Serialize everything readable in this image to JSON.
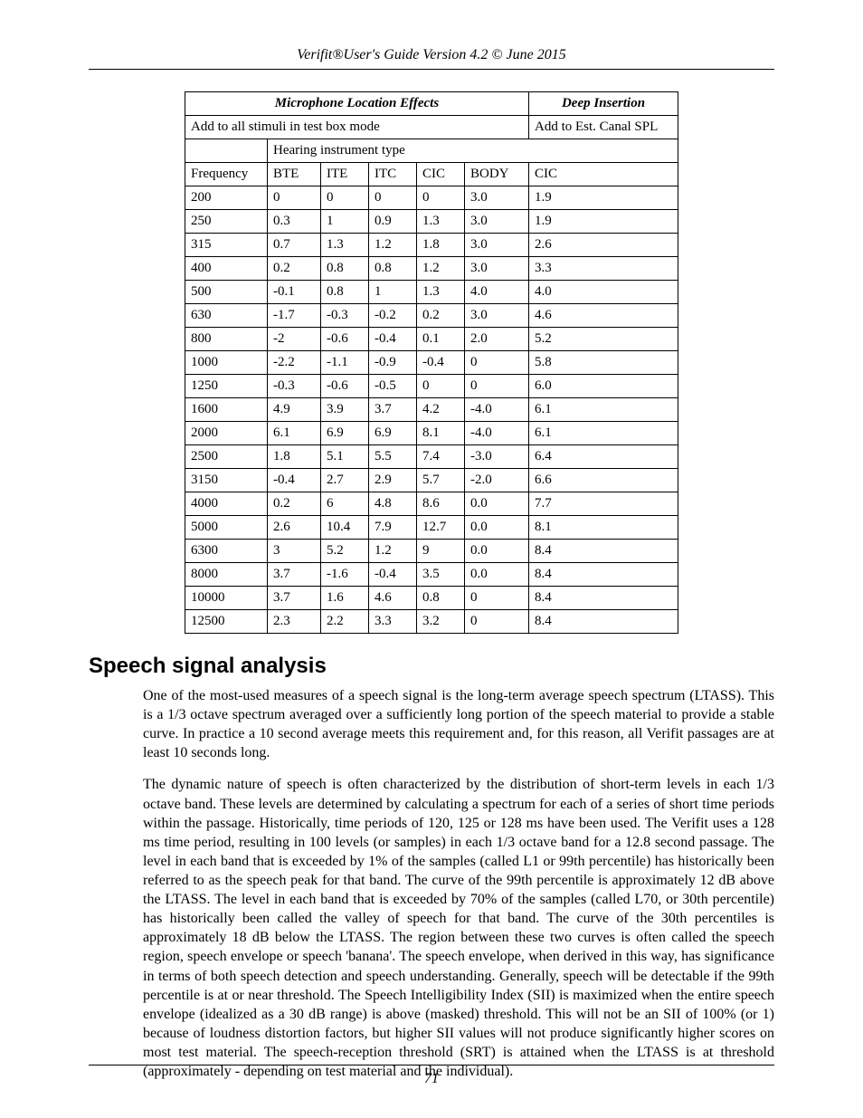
{
  "header": "Verifit®User's Guide Version 4.2 © June 2015",
  "pageNumber": "71",
  "table": {
    "mleHeader": "Microphone Location Effects",
    "deepHeader": "Deep Insertion",
    "mleSub": "Add to all stimuli in test box mode",
    "deepSub": "Add to Est. Canal SPL",
    "hearingType": "Hearing instrument type",
    "cols": {
      "freq": "Frequency",
      "bte": "BTE",
      "ite": "ITE",
      "itc": "ITC",
      "cic": "CIC",
      "body": "BODY",
      "cic2": "CIC"
    },
    "rows": [
      {
        "f": "200",
        "bte": "0",
        "ite": "0",
        "itc": "0",
        "cic": "0",
        "body": "3.0",
        "deep": "1.9"
      },
      {
        "f": "250",
        "bte": "0.3",
        "ite": "1",
        "itc": "0.9",
        "cic": "1.3",
        "body": "3.0",
        "deep": "1.9"
      },
      {
        "f": "315",
        "bte": "0.7",
        "ite": "1.3",
        "itc": "1.2",
        "cic": "1.8",
        "body": "3.0",
        "deep": "2.6"
      },
      {
        "f": "400",
        "bte": "0.2",
        "ite": "0.8",
        "itc": "0.8",
        "cic": "1.2",
        "body": "3.0",
        "deep": "3.3"
      },
      {
        "f": "500",
        "bte": "-0.1",
        "ite": "0.8",
        "itc": "1",
        "cic": "1.3",
        "body": "4.0",
        "deep": "4.0"
      },
      {
        "f": "630",
        "bte": "-1.7",
        "ite": "-0.3",
        "itc": "-0.2",
        "cic": "0.2",
        "body": "3.0",
        "deep": "4.6"
      },
      {
        "f": "800",
        "bte": "-2",
        "ite": "-0.6",
        "itc": "-0.4",
        "cic": "0.1",
        "body": "2.0",
        "deep": "5.2"
      },
      {
        "f": "1000",
        "bte": "-2.2",
        "ite": "-1.1",
        "itc": "-0.9",
        "cic": "-0.4",
        "body": "0",
        "deep": "5.8"
      },
      {
        "f": "1250",
        "bte": "-0.3",
        "ite": "-0.6",
        "itc": "-0.5",
        "cic": "0",
        "body": "0",
        "deep": "6.0"
      },
      {
        "f": "1600",
        "bte": "4.9",
        "ite": "3.9",
        "itc": "3.7",
        "cic": "4.2",
        "body": "-4.0",
        "deep": "6.1"
      },
      {
        "f": "2000",
        "bte": "6.1",
        "ite": "6.9",
        "itc": "6.9",
        "cic": "8.1",
        "body": "-4.0",
        "deep": "6.1"
      },
      {
        "f": "2500",
        "bte": "1.8",
        "ite": "5.1",
        "itc": "5.5",
        "cic": "7.4",
        "body": "-3.0",
        "deep": "6.4"
      },
      {
        "f": "3150",
        "bte": "-0.4",
        "ite": "2.7",
        "itc": "2.9",
        "cic": "5.7",
        "body": "-2.0",
        "deep": "6.6"
      },
      {
        "f": "4000",
        "bte": "0.2",
        "ite": "6",
        "itc": "4.8",
        "cic": "8.6",
        "body": "0.0",
        "deep": "7.7"
      },
      {
        "f": "5000",
        "bte": "2.6",
        "ite": "10.4",
        "itc": "7.9",
        "cic": "12.7",
        "body": "0.0",
        "deep": "8.1"
      },
      {
        "f": "6300",
        "bte": "3",
        "ite": "5.2",
        "itc": "1.2",
        "cic": "9",
        "body": "0.0",
        "deep": "8.4"
      },
      {
        "f": "8000",
        "bte": "3.7",
        "ite": "-1.6",
        "itc": "-0.4",
        "cic": "3.5",
        "body": "0.0",
        "deep": "8.4"
      },
      {
        "f": "10000",
        "bte": "3.7",
        "ite": "1.6",
        "itc": "4.6",
        "cic": "0.8",
        "body": "0",
        "deep": "8.4"
      },
      {
        "f": "12500",
        "bte": "2.3",
        "ite": "2.2",
        "itc": "3.3",
        "cic": "3.2",
        "body": "0",
        "deep": "8.4"
      }
    ]
  },
  "section": {
    "title": "Speech signal analysis",
    "p1": "One of the most-used measures of a speech signal is the long-term average speech spectrum (LTASS). This is a 1/3 octave spectrum averaged over a sufficiently long portion of the speech material to provide a stable curve. In practice a 10 second average meets this requirement and, for this reason, all Verifit passages are at least 10 seconds long.",
    "p2": "The dynamic nature of speech is often characterized by the distribution of short-term levels in each 1/3 octave band.  These levels are determined by calculating a spectrum for each of a series of short time periods within the passage. Historically, time periods of 120, 125 or 128 ms have been used. The Verifit uses a 128 ms time period, resulting in 100 levels (or samples) in each 1/3 octave band for a 12.8 second passage. The level in each band that is exceeded by 1% of the samples (called L1 or 99th percentile) has historically been referred to as the speech peak for that band. The curve of the 99th percentile is approximately 12 dB above the LTASS. The level in each band that is exceeded by 70% of the samples (called L70, or 30th percentile) has historically been called the valley of speech for that band. The curve of the 30th percentiles is approximately 18 dB below the LTASS. The region between these two curves is often called the speech region, speech envelope or speech 'banana'. The speech envelope, when derived in this way, has significance in terms of both speech detection and speech understanding. Generally, speech will be detectable if the 99th percentile is at or near threshold. The Speech Intelligibility Index (SII) is maximized when the entire speech envelope (idealized as a 30 dB range) is above (masked) threshold. This will not be an SII of 100% (or 1) because of loudness distortion factors, but higher SII values will not produce significantly higher scores on most test material. The speech-reception threshold (SRT) is attained when the LTASS is at threshold (approximately - depending on test material and the individual)."
  }
}
